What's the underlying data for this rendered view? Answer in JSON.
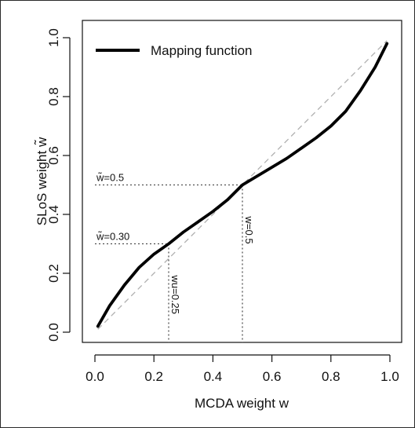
{
  "chart_data": {
    "type": "line",
    "title": "",
    "xlabel": "MCDA weight w",
    "ylabel": "SLoS weight w̃",
    "xlim": [
      0.0,
      1.0
    ],
    "ylim": [
      0.0,
      1.0
    ],
    "x_ticks": [
      "0.0",
      "0.2",
      "0.4",
      "0.6",
      "0.8",
      "1.0"
    ],
    "y_ticks": [
      "0.0",
      "0.2",
      "0.4",
      "0.6",
      "0.8",
      "1.0"
    ],
    "grid": false,
    "legend_position": "top-left",
    "series": [
      {
        "name": "Mapping function",
        "color": "#000000",
        "x": [
          0.01,
          0.05,
          0.1,
          0.15,
          0.2,
          0.25,
          0.3,
          0.35,
          0.4,
          0.45,
          0.5,
          0.55,
          0.6,
          0.65,
          0.7,
          0.75,
          0.8,
          0.85,
          0.9,
          0.95,
          0.99
        ],
        "y": [
          0.02,
          0.09,
          0.16,
          0.22,
          0.265,
          0.3,
          0.34,
          0.375,
          0.41,
          0.45,
          0.5,
          0.53,
          0.56,
          0.59,
          0.625,
          0.66,
          0.7,
          0.75,
          0.82,
          0.9,
          0.98
        ]
      }
    ],
    "reference_line": {
      "x": [
        0.01,
        0.99
      ],
      "y": [
        0.01,
        0.99
      ],
      "color": "#b0b0b0",
      "style": "dashed"
    },
    "annotations": [
      {
        "label": "w̃=0.5",
        "x": 0.5,
        "y": 0.5,
        "orientation": "horizontal"
      },
      {
        "label": "w̃=0.30",
        "x": 0.25,
        "y": 0.3,
        "orientation": "horizontal"
      },
      {
        "label": "wu=0.25",
        "x": 0.25,
        "y": 0.3,
        "orientation": "vertical"
      },
      {
        "label": "w=0.5",
        "x": 0.5,
        "y": 0.5,
        "orientation": "vertical"
      }
    ]
  }
}
